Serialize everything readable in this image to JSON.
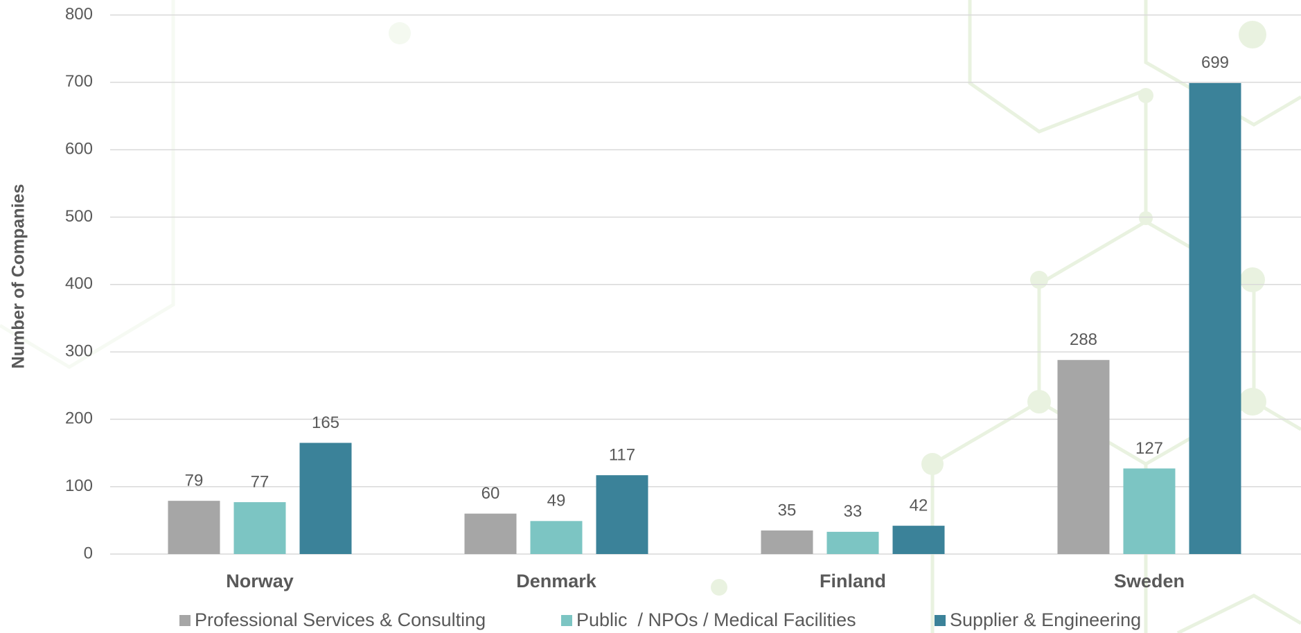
{
  "chart_data": {
    "type": "bar",
    "y_axis_title": "Number of Companies",
    "categories": [
      "Norway",
      "Denmark",
      "Finland",
      "Sweden"
    ],
    "series": [
      {
        "name": "Professional Services & Consulting",
        "color": "#a6a6a6",
        "values": [
          79,
          60,
          35,
          288
        ]
      },
      {
        "name": "Public  / NPOs / Medical Facilities",
        "color": "#7cc5c3",
        "values": [
          77,
          49,
          33,
          127
        ]
      },
      {
        "name": "Supplier & Engineering",
        "color": "#3b8299",
        "values": [
          165,
          117,
          42,
          699
        ]
      }
    ],
    "ylim": [
      0,
      800
    ],
    "yticks": [
      0,
      100,
      200,
      300,
      400,
      500,
      600,
      700,
      800
    ],
    "grid": true,
    "legend": "bottom"
  }
}
